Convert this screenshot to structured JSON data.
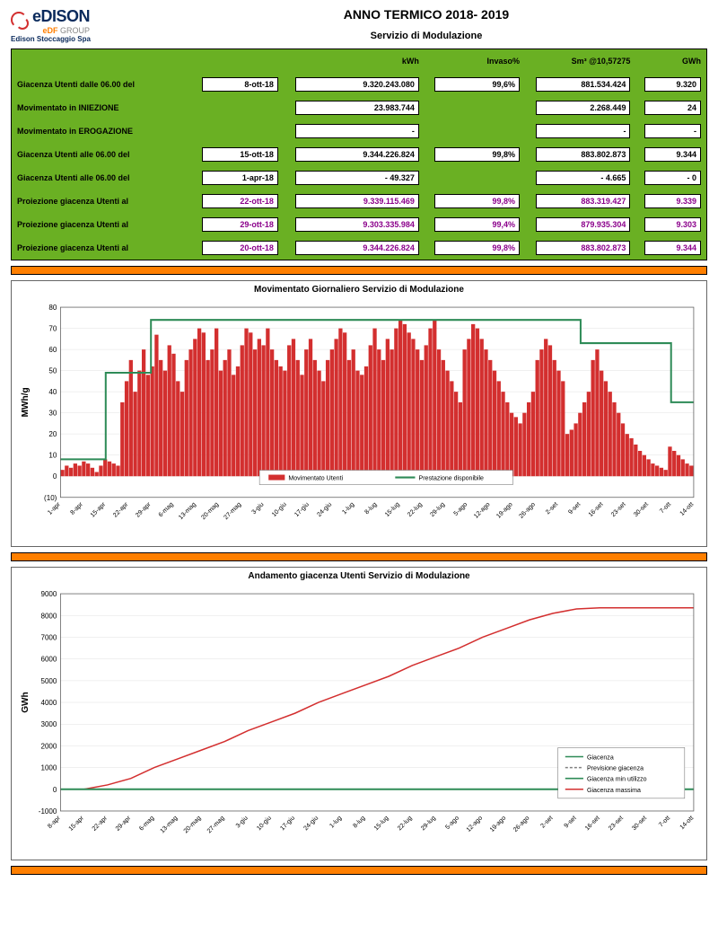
{
  "header": {
    "logo_text": "eDISON",
    "edf": "eDF",
    "edf_group": "GROUP",
    "company": "Edison Stoccaggio Spa",
    "title": "ANNO TERMICO 2018- 2019",
    "subtitle": "Servizio di Modulazione"
  },
  "table": {
    "cols": [
      "",
      "",
      "kWh",
      "Invaso%",
      "Sm³ @10,57275",
      "GWh"
    ],
    "rows": [
      {
        "label": "Giacenza Utenti dalle 06.00 del",
        "date": "8-ott-18",
        "kwh": "9.320.243.080",
        "inv": "99,6%",
        "sm": "881.534.424",
        "gwh": "9.320",
        "proj": false
      },
      {
        "label": "Movimentato in INIEZIONE",
        "date": "",
        "kwh": "23.983.744",
        "inv": "",
        "sm": "2.268.449",
        "gwh": "24",
        "proj": false
      },
      {
        "label": "Movimentato in EROGAZIONE",
        "date": "",
        "kwh": "-",
        "inv": "",
        "sm": "-",
        "gwh": "-",
        "proj": false
      },
      {
        "label": "Giacenza Utenti alle 06.00 del",
        "date": "15-ott-18",
        "kwh": "9.344.226.824",
        "inv": "99,8%",
        "sm": "883.802.873",
        "gwh": "9.344",
        "proj": false
      },
      {
        "label": "Giacenza Utenti alle 06.00 del",
        "date": "1-apr-18",
        "kwh": "- 49.327",
        "inv": "",
        "sm": "- 4.665",
        "gwh": "- 0",
        "proj": false
      },
      {
        "label": "Proiezione giacenza Utenti al",
        "date": "22-ott-18",
        "kwh": "9.339.115.469",
        "inv": "99,8%",
        "sm": "883.319.427",
        "gwh": "9.339",
        "proj": true
      },
      {
        "label": "Proiezione giacenza Utenti al",
        "date": "29-ott-18",
        "kwh": "9.303.335.984",
        "inv": "99,4%",
        "sm": "879.935.304",
        "gwh": "9.303",
        "proj": true
      },
      {
        "label": "Proiezione giacenza Utenti al",
        "date": "20-ott-18",
        "kwh": "9.344.226.824",
        "inv": "99,8%",
        "sm": "883.802.873",
        "gwh": "9.344",
        "proj": true
      }
    ]
  },
  "chart1": {
    "title": "Movimentato Giornaliero Servizio di Modulazione",
    "ylabel": "MWh/g",
    "ylim": [
      -10,
      80
    ],
    "ytick_step": 10,
    "x_labels": [
      "1-apr",
      "8-apr",
      "15-apr",
      "22-apr",
      "29-apr",
      "6-mag",
      "13-mag",
      "20-mag",
      "27-mag",
      "3-giu",
      "10-giu",
      "17-giu",
      "24-giu",
      "1-lug",
      "8-lug",
      "15-lug",
      "22-lug",
      "29-lug",
      "5-ago",
      "12-ago",
      "19-ago",
      "26-ago",
      "2-set",
      "9-set",
      "16-set",
      "23-set",
      "30-set",
      "7-ott",
      "14-ott"
    ],
    "bar_color": "#d32f2f",
    "line_color": "#2e8b57",
    "grid_color": "#e0e0e0",
    "legend": [
      "Movimentato Utenti",
      "Prestazione disponibile"
    ],
    "prestazione": [
      8,
      8,
      49,
      49,
      74,
      74,
      74,
      74,
      74,
      74,
      74,
      74,
      74,
      74,
      74,
      74,
      74,
      74,
      74,
      74,
      74,
      74,
      74,
      63,
      63,
      63,
      63,
      35,
      35
    ],
    "bars": [
      3,
      5,
      4,
      6,
      5,
      7,
      6,
      4,
      2,
      5,
      8,
      7,
      6,
      5,
      35,
      45,
      55,
      40,
      50,
      60,
      48,
      52,
      67,
      55,
      50,
      62,
      58,
      45,
      40,
      55,
      60,
      65,
      70,
      68,
      55,
      60,
      70,
      50,
      55,
      60,
      48,
      52,
      62,
      70,
      68,
      60,
      65,
      62,
      70,
      60,
      55,
      52,
      50,
      62,
      65,
      55,
      48,
      60,
      65,
      55,
      50,
      45,
      55,
      60,
      65,
      70,
      68,
      55,
      60,
      50,
      48,
      52,
      62,
      70,
      60,
      55,
      65,
      60,
      70,
      74,
      72,
      68,
      65,
      60,
      55,
      62,
      70,
      74,
      60,
      55,
      50,
      45,
      40,
      35,
      60,
      65,
      72,
      70,
      65,
      60,
      55,
      50,
      45,
      40,
      35,
      30,
      28,
      25,
      30,
      35,
      40,
      55,
      60,
      65,
      62,
      55,
      50,
      45,
      20,
      22,
      25,
      30,
      35,
      40,
      55,
      60,
      50,
      45,
      40,
      35,
      30,
      25,
      20,
      18,
      15,
      12,
      10,
      8,
      6,
      5,
      4,
      3,
      14,
      12,
      10,
      8,
      6,
      5
    ]
  },
  "chart2": {
    "title": "Andamento giacenza Utenti Servizio di Modulazione",
    "ylabel": "GWh",
    "ylim": [
      -1000,
      9000
    ],
    "ytick_step": 1000,
    "x_labels": [
      "8-apr",
      "15-apr",
      "22-apr",
      "29-apr",
      "6-mag",
      "13-mag",
      "20-mag",
      "27-mag",
      "3-giu",
      "10-giu",
      "17-giu",
      "24-giu",
      "1-lug",
      "8-lug",
      "15-lug",
      "22-lug",
      "29-lug",
      "5-ago",
      "12-ago",
      "19-ago",
      "26-ago",
      "2-set",
      "9-set",
      "16-set",
      "23-set",
      "30-set",
      "7-ott",
      "14-ott"
    ],
    "grid_color": "#e0e0e0",
    "legend": [
      "Giacenza",
      "Previsione giacenza",
      "Giacenza min utilizzo",
      "Giacenza massima"
    ],
    "colors": {
      "giacenza": "#2e8b57",
      "previsione": "#808080",
      "min": "#2e8b57",
      "massima": "#d32f2f"
    },
    "giacenza_massima": [
      0,
      0,
      200,
      500,
      1000,
      1400,
      1800,
      2200,
      2700,
      3100,
      3500,
      4000,
      4400,
      4800,
      5200,
      5700,
      6100,
      6500,
      7000,
      7400,
      7800,
      8100,
      8300,
      8350,
      8350,
      8350,
      8350,
      8350
    ],
    "giacenza": [
      0,
      0,
      0,
      0,
      0,
      0,
      0,
      0,
      0,
      0,
      0,
      0,
      0,
      0,
      0,
      0,
      0,
      0,
      0,
      0,
      0,
      0,
      0,
      0,
      0,
      0,
      0,
      0
    ]
  }
}
